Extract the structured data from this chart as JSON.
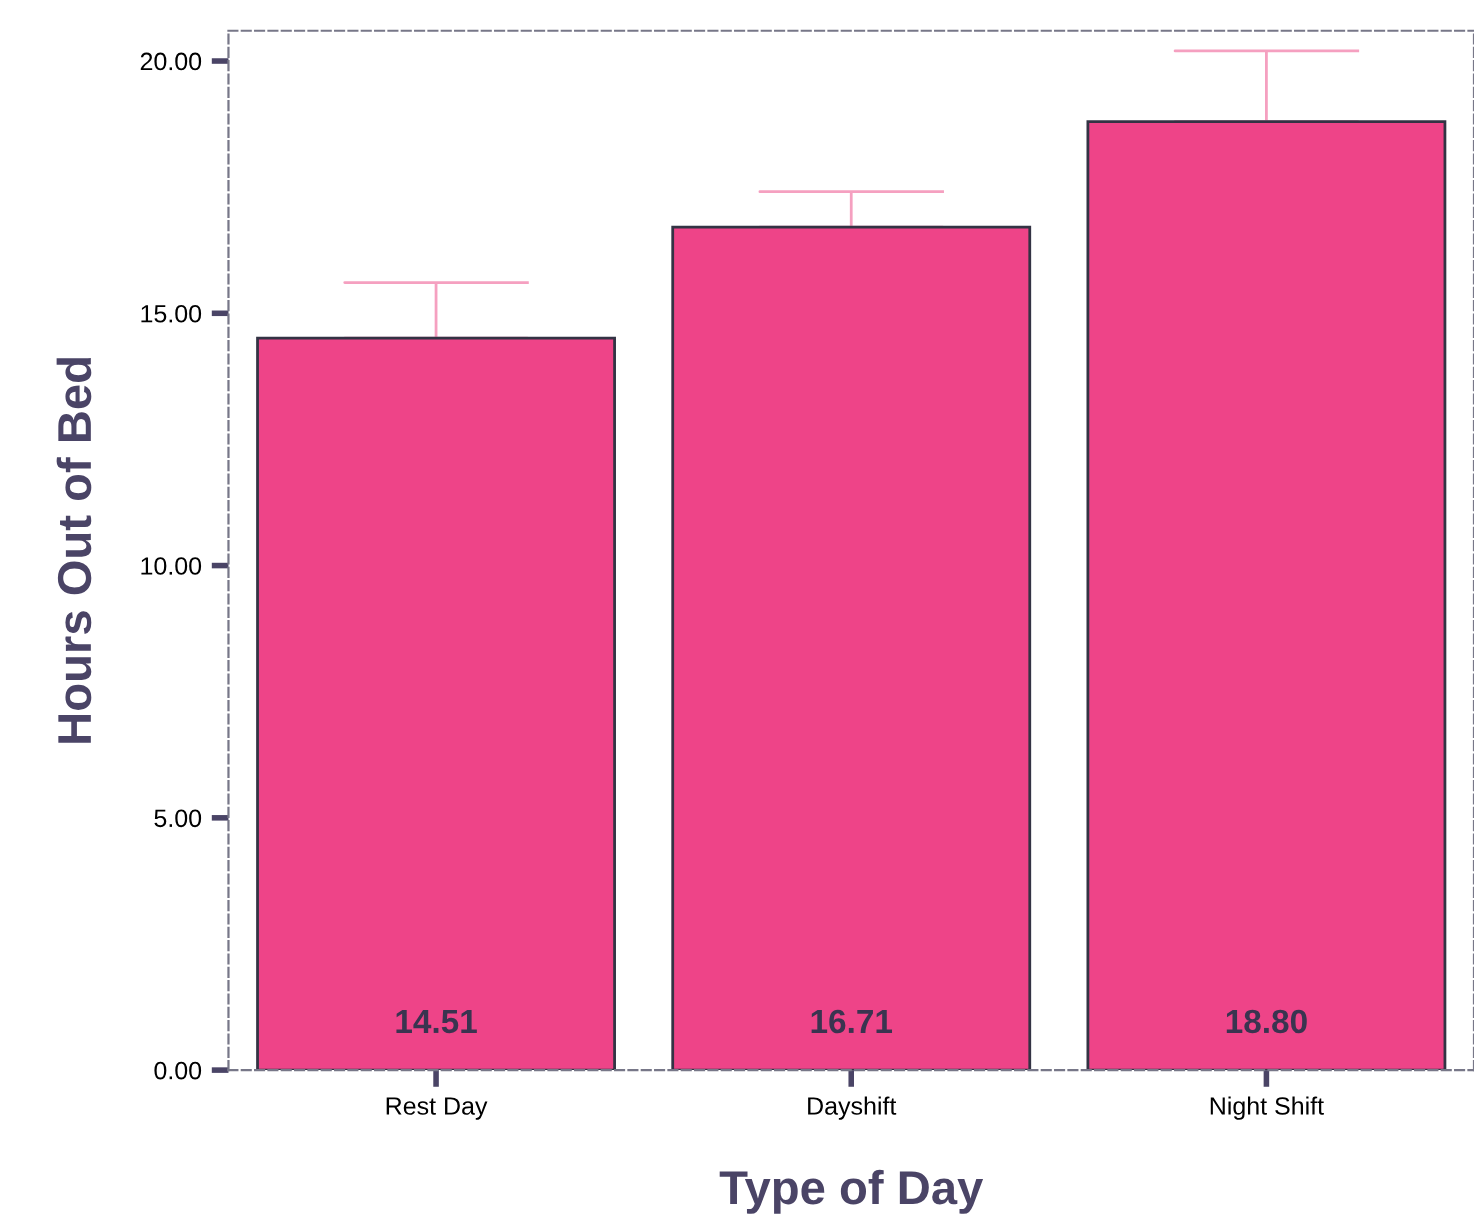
{
  "chart_data": {
    "type": "bar",
    "xlabel": "Type of Day",
    "ylabel": "Hours Out of Bed",
    "categories": [
      "Rest Day",
      "Dayshift",
      "Night Shift"
    ],
    "values": [
      14.51,
      16.71,
      18.8
    ],
    "value_labels": [
      "14.51",
      "16.71",
      "18.80"
    ],
    "errors": [
      [
        14.51,
        15.61
      ],
      [
        16.71,
        17.41
      ],
      [
        18.8,
        20.2
      ]
    ],
    "color": "#ee4488",
    "ylim": [
      0,
      20.6
    ],
    "yticks": [
      {
        "value": 0,
        "label": "0.00"
      },
      {
        "value": 5,
        "label": "5.00"
      },
      {
        "value": 10,
        "label": "10.00"
      },
      {
        "value": 15,
        "label": "15.00"
      },
      {
        "value": 20,
        "label": "20.00"
      }
    ],
    "grid": false
  }
}
